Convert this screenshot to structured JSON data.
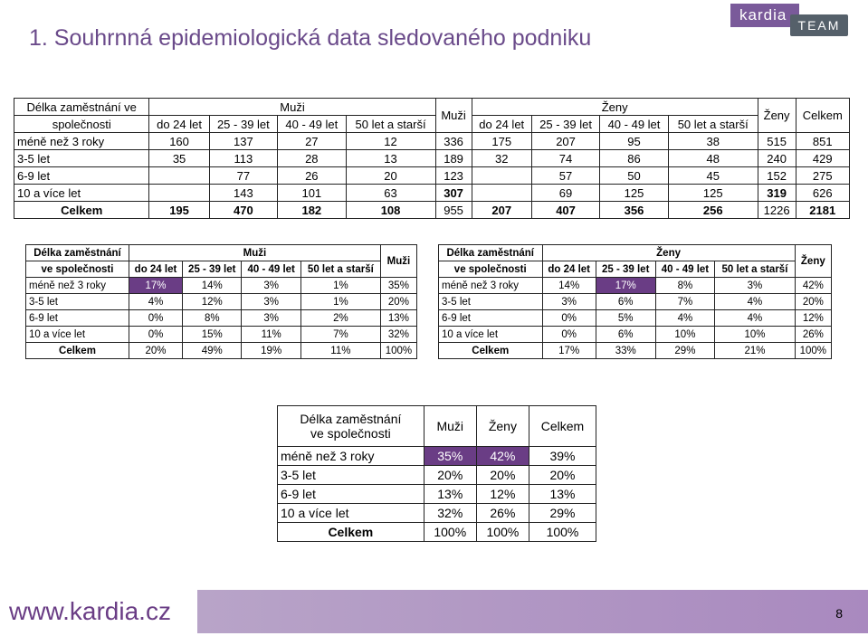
{
  "title": "1. Souhrnná epidemiologická data sledovaného podniku",
  "logo": {
    "part1": "kardia",
    "part2": "TEAM"
  },
  "footer": {
    "url": "www.kardia.cz",
    "page": "8"
  },
  "table1": {
    "h_col0_line1": "Délka zaměstnání ve",
    "h_col0_line2": "společnosti",
    "h_muzi": "Muži",
    "h_muzi_total": "Muži",
    "h_zeny": "Ženy",
    "h_zeny_total": "Ženy",
    "h_celkem": "Celkem",
    "age_cols": [
      "do 24 let",
      "25 - 39 let",
      "40 - 49 let",
      "50 let a starší"
    ],
    "rows": [
      [
        "méně než 3 roky",
        "160",
        "137",
        "27",
        "12",
        "336",
        "175",
        "207",
        "95",
        "38",
        "515",
        "851"
      ],
      [
        "3-5 let",
        "35",
        "113",
        "28",
        "13",
        "189",
        "32",
        "74",
        "86",
        "48",
        "240",
        "429"
      ],
      [
        "6-9 let",
        "",
        "77",
        "26",
        "20",
        "123",
        "",
        "57",
        "50",
        "45",
        "152",
        "275"
      ],
      [
        "10 a více let",
        "",
        "143",
        "101",
        "63",
        "307",
        "",
        "69",
        "125",
        "125",
        "319",
        "626"
      ],
      [
        "Celkem",
        "195",
        "470",
        "182",
        "108",
        "955",
        "207",
        "407",
        "356",
        "256",
        "1226",
        "2181"
      ]
    ]
  },
  "table2": {
    "h_col0_line1": "Délka zaměstnání",
    "h_col0_line2": "ve společnosti",
    "h_group": "Muži",
    "h_total": "Muži",
    "age_cols": [
      "do 24 let",
      "25 - 39 let",
      "40 - 49 let",
      "50 let a starší"
    ],
    "rows": [
      [
        "méně než 3 roky",
        "17%",
        "14%",
        "3%",
        "1%",
        "35%"
      ],
      [
        "3-5 let",
        "4%",
        "12%",
        "3%",
        "1%",
        "20%"
      ],
      [
        "6-9 let",
        "0%",
        "8%",
        "3%",
        "2%",
        "13%"
      ],
      [
        "10 a více let",
        "0%",
        "15%",
        "11%",
        "7%",
        "32%"
      ],
      [
        "Celkem",
        "20%",
        "49%",
        "19%",
        "11%",
        "100%"
      ]
    ]
  },
  "table3": {
    "h_col0_line1": "Délka zaměstnání",
    "h_col0_line2": "ve společnosti",
    "h_group": "Ženy",
    "h_total": "Ženy",
    "age_cols": [
      "do 24 let",
      "25 - 39 let",
      "40 - 49 let",
      "50 let a starší"
    ],
    "rows": [
      [
        "méně než 3 roky",
        "14%",
        "17%",
        "8%",
        "3%",
        "42%"
      ],
      [
        "3-5 let",
        "3%",
        "6%",
        "7%",
        "4%",
        "20%"
      ],
      [
        "6-9 let",
        "0%",
        "5%",
        "4%",
        "4%",
        "12%"
      ],
      [
        "10 a více let",
        "0%",
        "6%",
        "10%",
        "10%",
        "26%"
      ],
      [
        "Celkem",
        "17%",
        "33%",
        "29%",
        "21%",
        "100%"
      ]
    ]
  },
  "table4": {
    "h_col0_line1": "Délka zaměstnání",
    "h_col0_line2": "ve společnosti",
    "h_muzi": "Muži",
    "h_zeny": "Ženy",
    "h_celkem": "Celkem",
    "rows": [
      [
        "méně než 3 roky",
        "35%",
        "42%",
        "39%"
      ],
      [
        "3-5 let",
        "20%",
        "20%",
        "20%"
      ],
      [
        "6-9 let",
        "13%",
        "12%",
        "13%"
      ],
      [
        "10 a více let",
        "32%",
        "26%",
        "29%"
      ],
      [
        "Celkem",
        "100%",
        "100%",
        "100%"
      ]
    ]
  },
  "colors": {
    "accent": "#6a3d85",
    "title": "#6a4a8a",
    "footer_bar": "#a989bf"
  }
}
